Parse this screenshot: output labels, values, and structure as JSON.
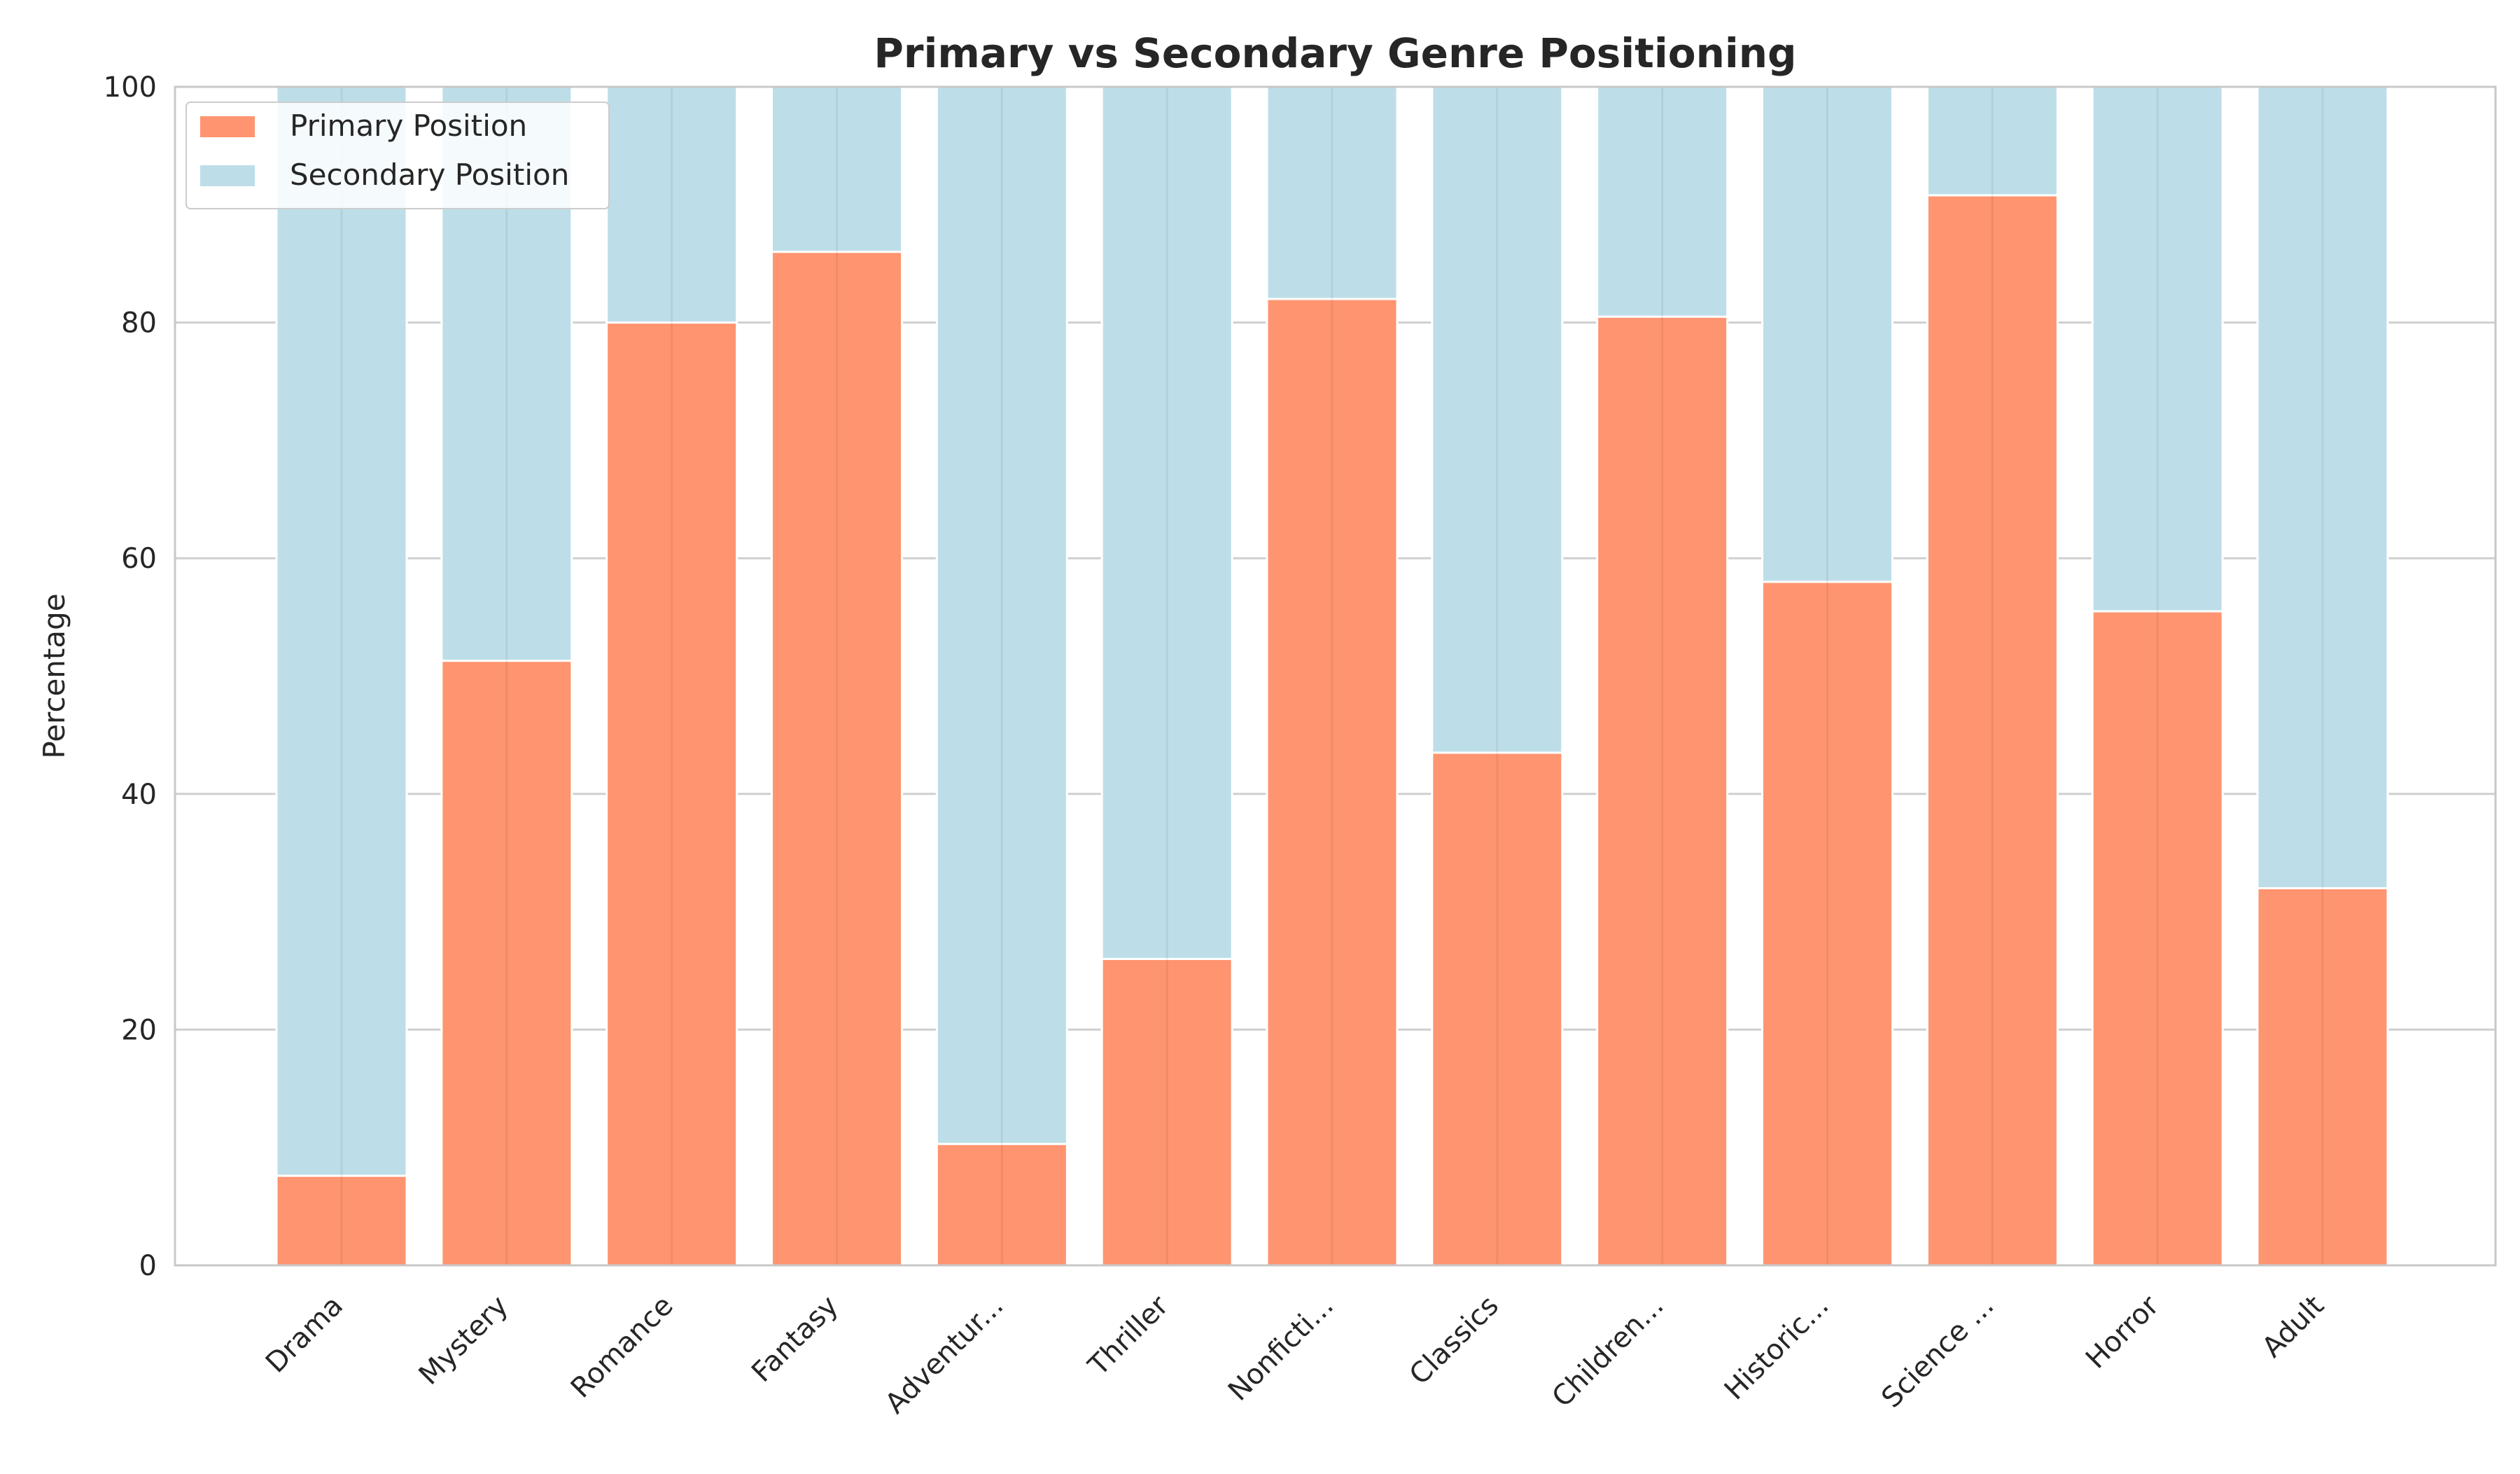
{
  "chart_data": {
    "type": "bar",
    "stacked": true,
    "title": "Primary vs Secondary Genre Positioning",
    "xlabel": "",
    "ylabel": "Percentage",
    "ylim": [
      0,
      100
    ],
    "yticks": [
      0,
      20,
      40,
      60,
      80,
      100
    ],
    "grid": true,
    "legend_position": "top-left",
    "categories": [
      "Drama",
      "Mystery",
      "Romance",
      "Fantasy",
      "Adventur...",
      "Thriller",
      "Nonficti...",
      "Classics",
      "Children...",
      "Historic...",
      "Science ...",
      "Horror",
      "Adult"
    ],
    "series": [
      {
        "name": "Primary Position",
        "color": "#ff9470",
        "values": [
          7.6,
          51.3,
          80.0,
          86.0,
          10.3,
          26.0,
          82.0,
          43.5,
          80.5,
          58.0,
          90.8,
          55.5,
          32.0
        ]
      },
      {
        "name": "Secondary Position",
        "color": "#bddee9",
        "values": [
          92.4,
          48.7,
          20.0,
          14.0,
          89.7,
          74.0,
          18.0,
          56.5,
          19.5,
          42.0,
          9.2,
          44.5,
          68.0
        ]
      }
    ]
  }
}
